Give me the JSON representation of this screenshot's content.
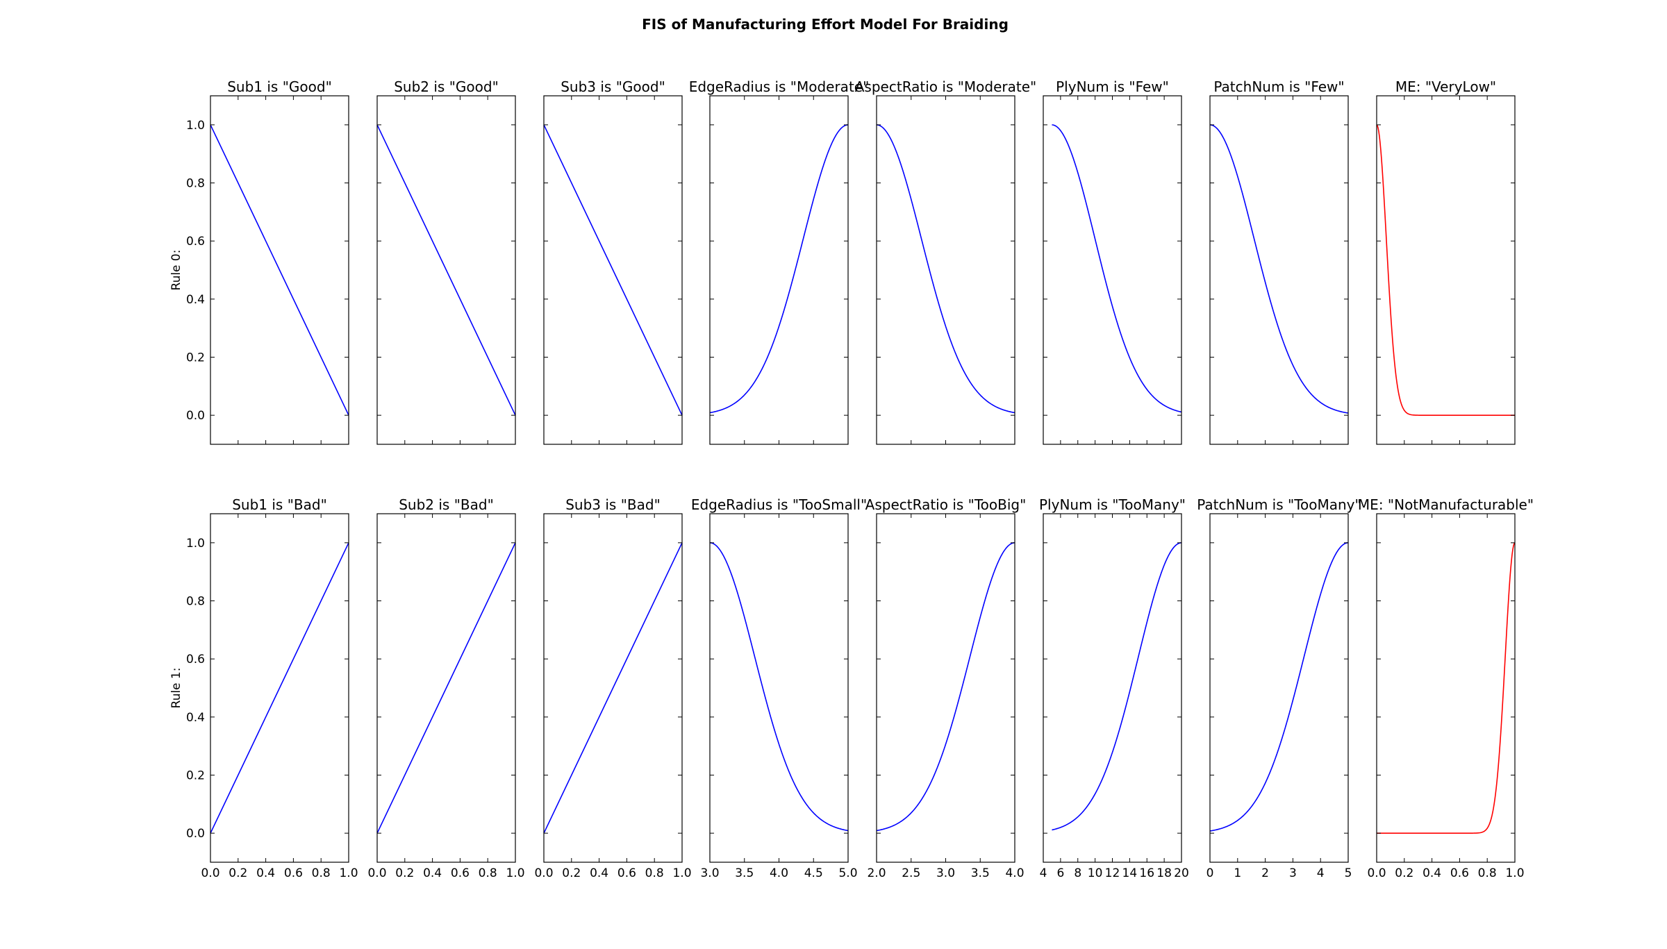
{
  "title": "FIS of Manufacturing Effort Model For Braiding",
  "colors": {
    "input_line": "#0000ff",
    "output_line": "#ff0000",
    "axes": "#000000",
    "background": "#ffffff"
  },
  "chart_data": {
    "type": "line",
    "grid": false,
    "ylim": [
      -0.1,
      1.1
    ],
    "yticks": [
      "0.0",
      "0.2",
      "0.4",
      "0.6",
      "0.8",
      "1.0"
    ],
    "row_labels": [
      "Rule 0:",
      "Rule 1:"
    ],
    "columns": [
      {
        "variable": "Sub1",
        "xlim": [
          0,
          1
        ],
        "xticks": [
          "0.0",
          "0.2",
          "0.4",
          "0.6",
          "0.8",
          "1.0"
        ]
      },
      {
        "variable": "Sub2",
        "xlim": [
          0,
          1
        ],
        "xticks": [
          "0.0",
          "0.2",
          "0.4",
          "0.6",
          "0.8",
          "1.0"
        ]
      },
      {
        "variable": "Sub3",
        "xlim": [
          0,
          1
        ],
        "xticks": [
          "0.0",
          "0.2",
          "0.4",
          "0.6",
          "0.8",
          "1.0"
        ]
      },
      {
        "variable": "EdgeRadius",
        "xlim": [
          3,
          5
        ],
        "xticks": [
          "3.0",
          "3.5",
          "4.0",
          "4.5",
          "5.0"
        ]
      },
      {
        "variable": "AspectRatio",
        "xlim": [
          2,
          4
        ],
        "xticks": [
          "2.0",
          "2.5",
          "3.0",
          "3.5",
          "4.0"
        ]
      },
      {
        "variable": "PlyNum",
        "xlim": [
          4,
          20
        ],
        "xticks": [
          "4",
          "6",
          "8",
          "10",
          "12",
          "14",
          "16",
          "18",
          "20"
        ]
      },
      {
        "variable": "PatchNum",
        "xlim": [
          0,
          5
        ],
        "xticks": [
          "0",
          "1",
          "2",
          "3",
          "4",
          "5"
        ]
      },
      {
        "variable": "ME",
        "xlim": [
          0,
          1
        ],
        "xticks": [
          "0.0",
          "0.2",
          "0.4",
          "0.6",
          "0.8",
          "1.0"
        ]
      }
    ],
    "panels": [
      [
        {
          "title": "Sub1 is \"Good\"",
          "shape": "linear",
          "x": [
            0,
            1
          ],
          "y": [
            1,
            0
          ]
        },
        {
          "title": "Sub2 is \"Good\"",
          "shape": "linear",
          "x": [
            0,
            1
          ],
          "y": [
            1,
            0
          ]
        },
        {
          "title": "Sub3 is \"Good\"",
          "shape": "linear",
          "x": [
            0,
            1
          ],
          "y": [
            1,
            0
          ]
        },
        {
          "title": "EdgeRadius is \"Moderate\"",
          "shape": "gaussian",
          "mean": 5,
          "sigma": 0.65,
          "x": [
            3,
            5
          ]
        },
        {
          "title": "AspectRatio is \"Moderate\"",
          "shape": "gaussian",
          "mean": 2,
          "sigma": 0.65,
          "x": [
            2,
            4
          ]
        },
        {
          "title": "PlyNum is \"Few\"",
          "shape": "gaussian",
          "mean": 5,
          "sigma": 5,
          "x": [
            5,
            20
          ]
        },
        {
          "title": "PatchNum is \"Few\"",
          "shape": "gaussian",
          "mean": 0,
          "sigma": 1.6,
          "x": [
            0,
            5
          ]
        },
        {
          "title": "ME: \"VeryLow\"",
          "shape": "gaussian",
          "mean": 0,
          "sigma": 0.07,
          "x": [
            0,
            1
          ],
          "output": true
        }
      ],
      [
        {
          "title": "Sub1 is \"Bad\"",
          "shape": "linear",
          "x": [
            0,
            1
          ],
          "y": [
            0,
            1
          ]
        },
        {
          "title": "Sub2 is \"Bad\"",
          "shape": "linear",
          "x": [
            0,
            1
          ],
          "y": [
            0,
            1
          ]
        },
        {
          "title": "Sub3 is \"Bad\"",
          "shape": "linear",
          "x": [
            0,
            1
          ],
          "y": [
            0,
            1
          ]
        },
        {
          "title": "EdgeRadius is \"TooSmall\"",
          "shape": "gaussian",
          "mean": 3,
          "sigma": 0.65,
          "x": [
            3,
            5
          ]
        },
        {
          "title": "AspectRatio is \"TooBig\"",
          "shape": "gaussian",
          "mean": 4,
          "sigma": 0.65,
          "x": [
            2,
            4
          ]
        },
        {
          "title": "PlyNum is \"TooMany\"",
          "shape": "gaussian",
          "mean": 20,
          "sigma": 5,
          "x": [
            5,
            20
          ]
        },
        {
          "title": "PatchNum is \"TooMany\"",
          "shape": "gaussian",
          "mean": 5,
          "sigma": 1.6,
          "x": [
            0,
            5
          ]
        },
        {
          "title": "ME: \"NotManufacturable\"",
          "shape": "gaussian",
          "mean": 1,
          "sigma": 0.07,
          "x": [
            0,
            1
          ],
          "output": true
        }
      ]
    ]
  }
}
